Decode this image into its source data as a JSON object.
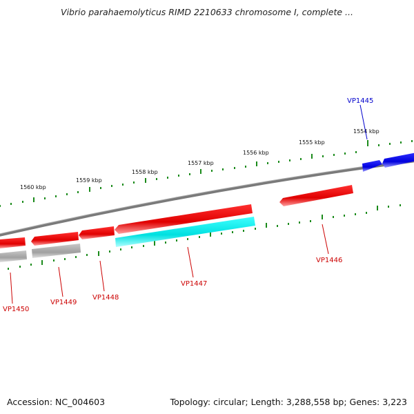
{
  "title": "Vibrio parahaemolyticus RIMD 2210633 chromosome I, complete ...",
  "footer": {
    "accession": "Accession: NC_004603",
    "summary": "Topology: circular; Length: 3,288,558 bp; Genes: 3,223"
  },
  "scale_labels": [
    "1554 kbp",
    "1555 kbp",
    "1556 kbp",
    "1557 kbp",
    "1558 kbp",
    "1559 kbp",
    "1560 kbp"
  ],
  "gene_labels": [
    {
      "id": "VP1445",
      "color": "#0000cc"
    },
    {
      "id": "VP1446",
      "color": "#cc0000"
    },
    {
      "id": "VP1447",
      "color": "#cc0000"
    },
    {
      "id": "VP1448",
      "color": "#cc0000"
    },
    {
      "id": "VP1449",
      "color": "#cc0000"
    },
    {
      "id": "VP1450",
      "color": "#cc0000"
    }
  ],
  "colors": {
    "forward_gene": "#0000ee",
    "reverse_gene": "#ee0000",
    "rna_or_highlight": "#00dddd",
    "other_feature": "#a8a8a8",
    "backbone": "#808080",
    "tick": "#1a8a1a"
  }
}
